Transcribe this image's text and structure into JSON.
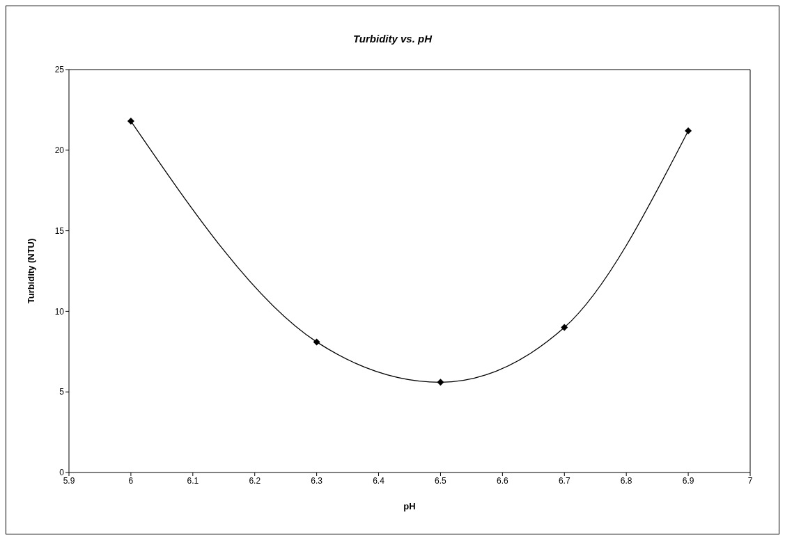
{
  "chart_data": {
    "type": "line",
    "title": "Turbidity vs. pH",
    "xlabel": "pH",
    "ylabel": "Turbidity (NTU)",
    "x": [
      6.0,
      6.3,
      6.5,
      6.7,
      6.9
    ],
    "series": [
      {
        "color": "#000000",
        "values": [
          21.8,
          8.1,
          5.6,
          9.0,
          21.2
        ]
      }
    ],
    "xlim": [
      5.9,
      7
    ],
    "xticks": [
      5.9,
      6,
      6.1,
      6.2,
      6.3,
      6.4,
      6.5,
      6.6,
      6.7,
      6.8,
      6.9,
      7
    ],
    "ylim": [
      0,
      25
    ],
    "yticks": [
      0,
      5,
      10,
      15,
      20,
      25
    ],
    "grid": false,
    "legend": false,
    "marker": "diamond",
    "line_style": "solid"
  }
}
